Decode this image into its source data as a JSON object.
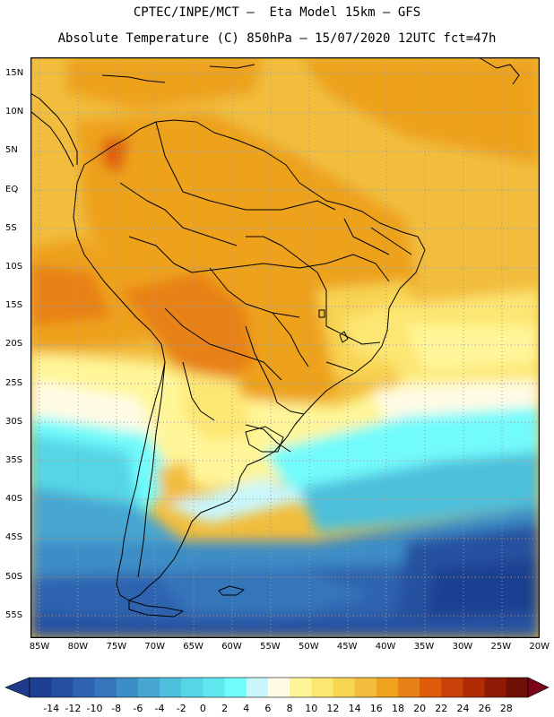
{
  "title_line1": "CPTEC/INPE/MCT –  Eta Model 15km – GFS",
  "title_line2": "Absolute Temperature (C) 850hPa – 15/07/2020 12UTC fct=47h",
  "lat_labels": [
    "15N",
    "10N",
    "5N",
    "EQ",
    "5S",
    "10S",
    "15S",
    "20S",
    "25S",
    "30S",
    "35S",
    "40S",
    "45S",
    "50S",
    "55S"
  ],
  "lon_labels": [
    "85W",
    "80W",
    "75W",
    "70W",
    "65W",
    "60W",
    "55W",
    "50W",
    "45W",
    "40W",
    "35W",
    "30W",
    "25W",
    "20W"
  ],
  "colorbar": {
    "labels": [
      "-14",
      "-12",
      "-10",
      "-8",
      "-6",
      "-4",
      "-2",
      "0",
      "2",
      "4",
      "6",
      "8",
      "10",
      "12",
      "14",
      "16",
      "18",
      "20",
      "22",
      "24",
      "26",
      "28"
    ],
    "colors": [
      "#1e3f91",
      "#2651a0",
      "#2e63b0",
      "#3576bb",
      "#3d8dc6",
      "#47a6d2",
      "#4ec0dc",
      "#55d6e6",
      "#5fe8ee",
      "#72fbfb",
      "#c9f6fb",
      "#fffbe5",
      "#fff699",
      "#fde773",
      "#f8d453",
      "#f2bd3c",
      "#eea21e",
      "#e88119",
      "#de5c0c",
      "#c9420a",
      "#b02b06",
      "#8e1c05",
      "#6f1006"
    ],
    "low_arrow_color": "#203a8a",
    "high_arrow_color": "#7a0418"
  }
}
